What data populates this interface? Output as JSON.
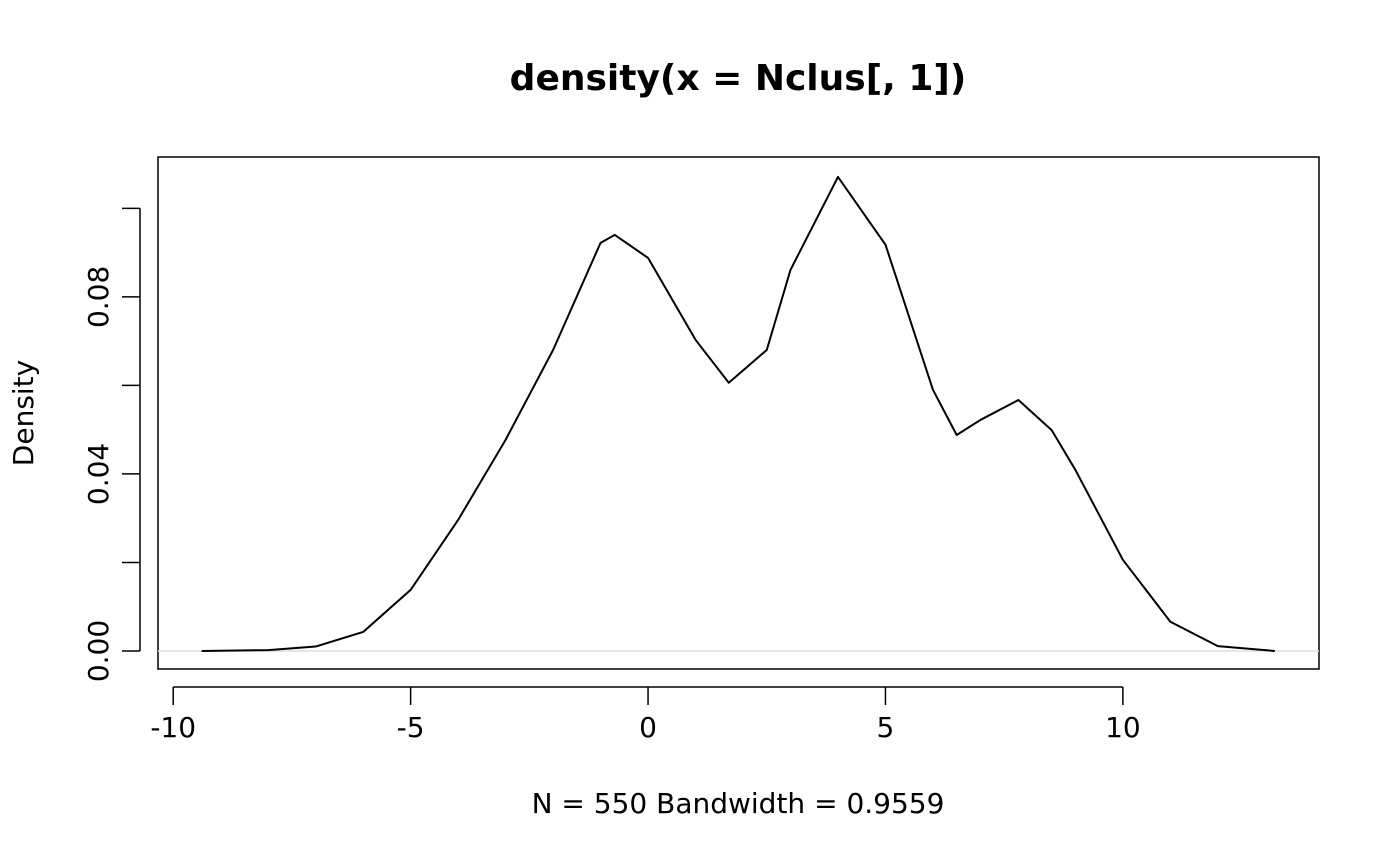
{
  "chart_data": {
    "type": "line",
    "title": "density(x = Nclus[, 1])",
    "xlabel": "N = 550   Bandwidth = 0.9559",
    "ylabel": "Density",
    "x": [
      -9.4,
      -8,
      -7,
      -6,
      -5,
      -4,
      -3,
      -2,
      -1,
      -0.7,
      0,
      1,
      1.7,
      2.5,
      3,
      4,
      5,
      6,
      6.5,
      7,
      7.8,
      8.5,
      9,
      10,
      11,
      12,
      13.2
    ],
    "series": [
      {
        "color": "#000000",
        "values": [
          0,
          0.0002,
          0.001,
          0.0043,
          0.0138,
          0.0296,
          0.0477,
          0.068,
          0.0922,
          0.094,
          0.0888,
          0.0703,
          0.0606,
          0.068,
          0.0861,
          0.1071,
          0.0918,
          0.059,
          0.0488,
          0.0522,
          0.0567,
          0.0499,
          0.0409,
          0.0206,
          0.0066,
          0.0011,
          0
        ]
      }
    ],
    "xlim": [
      -10.32,
      14.13
    ],
    "ylim": [
      -0.00407,
      0.1116
    ],
    "xticks": [
      -10,
      -5,
      0,
      5,
      10
    ],
    "yticks": [
      {
        "value": 0,
        "label": "0.00"
      },
      {
        "value": 0.04,
        "label": "0.04"
      },
      {
        "value": 0.08,
        "label": "0.08"
      }
    ],
    "yminorticks": [
      0.02,
      0.06,
      0.1
    ],
    "zero_line_color": "#dddddd"
  }
}
